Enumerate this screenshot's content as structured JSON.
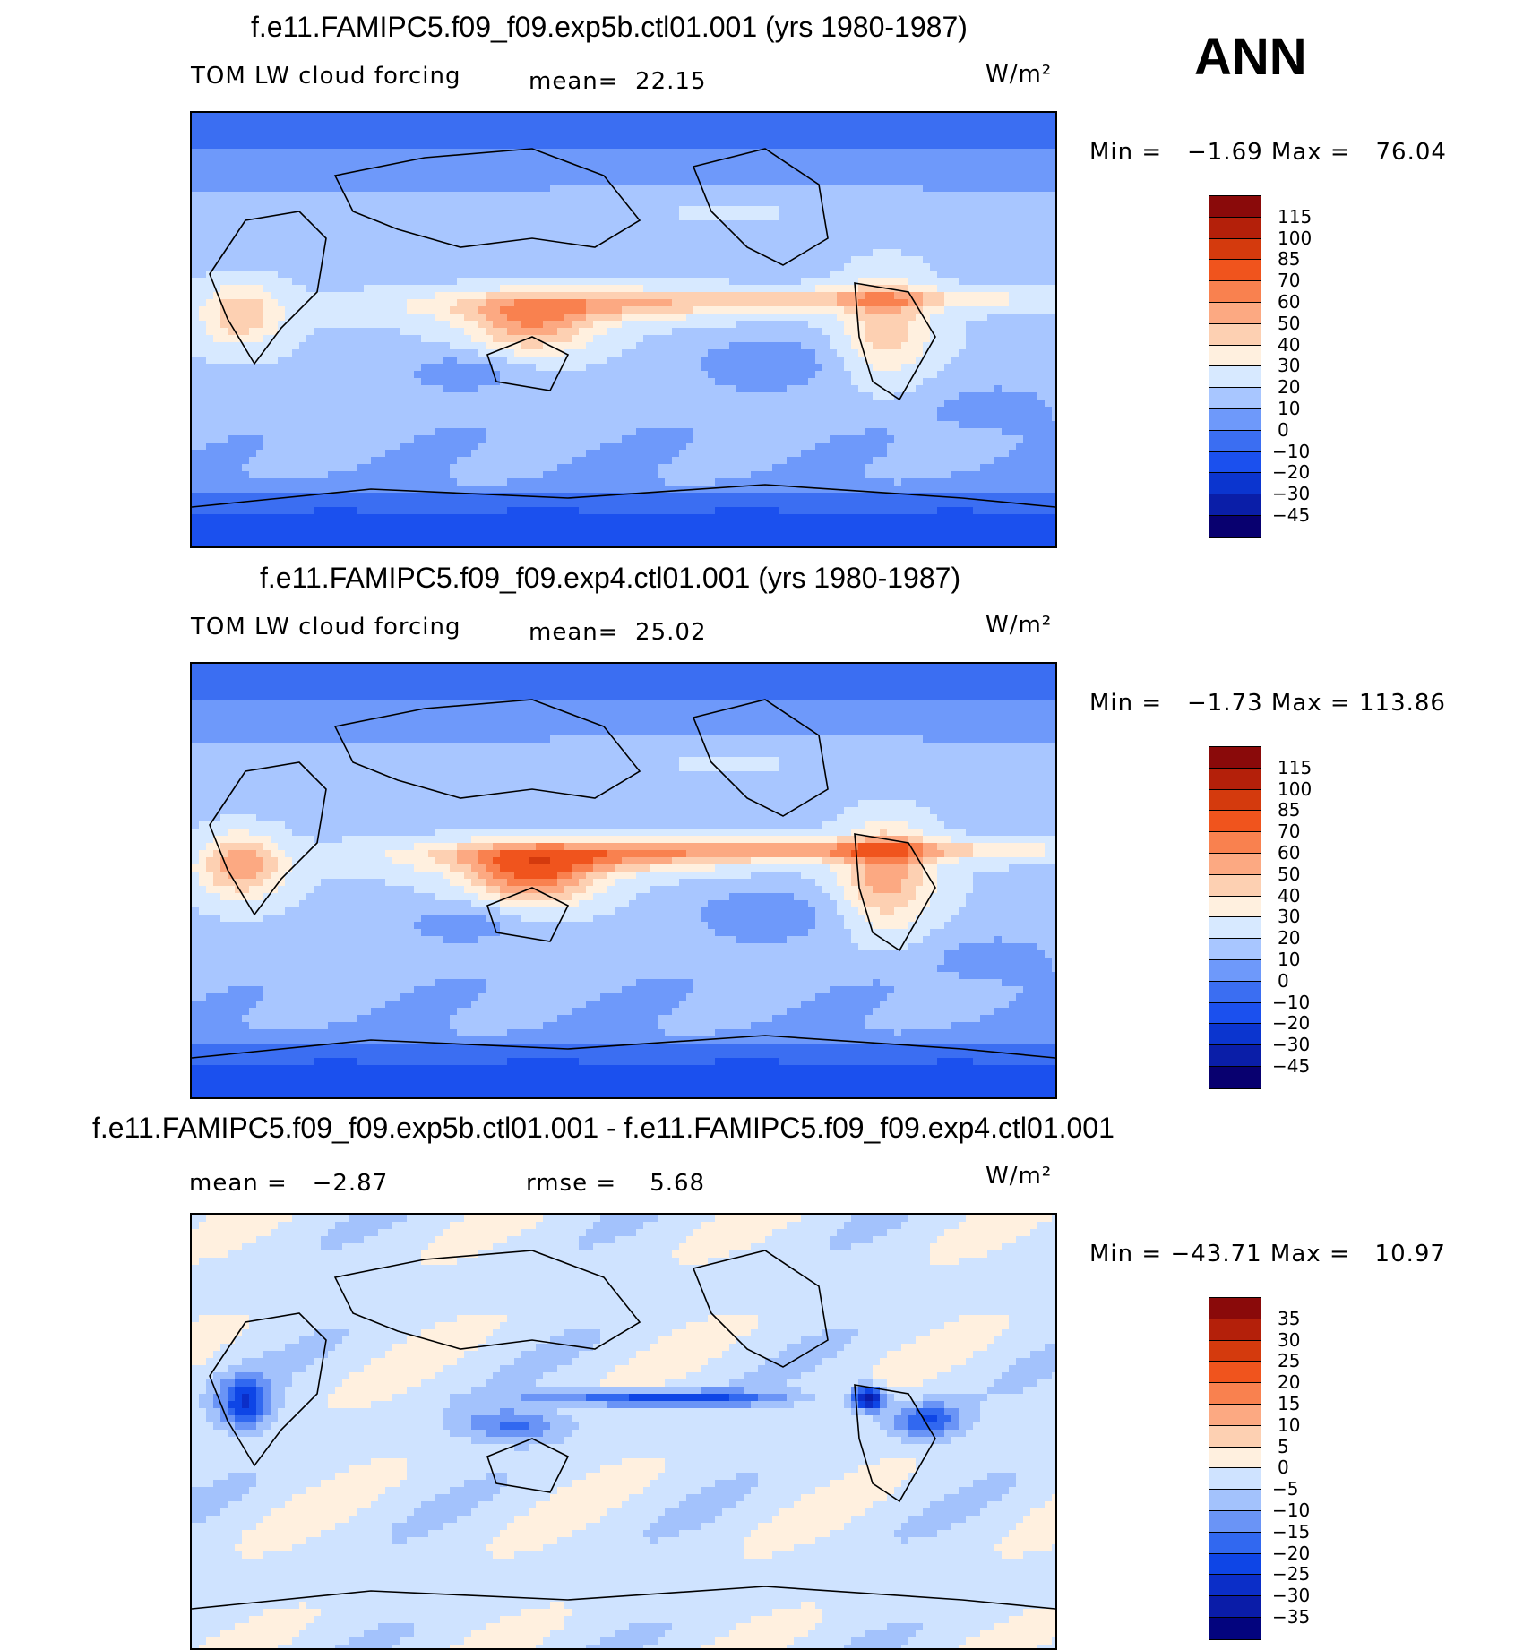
{
  "season": "ANN",
  "units": "W/m²",
  "palettes": {
    "abs": [
      "#08006f",
      "#0a1ea8",
      "#0b35cf",
      "#1b50ee",
      "#3b6ef2",
      "#6e99fa",
      "#a8c6ff",
      "#d7e9ff",
      "#fff0df",
      "#fdd0b2",
      "#fca982",
      "#f9814f",
      "#f0541d",
      "#d43a0d",
      "#b4200a",
      "#8a0a0a"
    ],
    "diff": [
      "#03047e",
      "#0a1ca8",
      "#0b2ec8",
      "#0e45e6",
      "#3168f0",
      "#6a94f6",
      "#a3c2fc",
      "#cfe3ff",
      "#fff0df",
      "#fdd0b2",
      "#fca982",
      "#f9814f",
      "#f0541d",
      "#d43a0d",
      "#b4200a",
      "#8a0a0a"
    ]
  },
  "panels": [
    {
      "title": "f.e11.FAMIPC5.f09_f09.exp5b.ctl01.001 (yrs 1980-1987)",
      "left_label": "TOM LW cloud forcing",
      "mid_label": "mean=  22.15",
      "units": "W/m²",
      "minmax": "Min =   −1.69 Max =   76.04",
      "palette": "abs",
      "scenario": "a"
    },
    {
      "title": "f.e11.FAMIPC5.f09_f09.exp4.ctl01.001 (yrs 1980-1987)",
      "left_label": "TOM LW cloud forcing",
      "mid_label": "mean=  25.02",
      "units": "W/m²",
      "minmax": "Min =   −1.73 Max = 113.86",
      "palette": "abs",
      "scenario": "b"
    },
    {
      "title": "f.e11.FAMIPC5.f09_f09.exp5b.ctl01.001 - f.e11.FAMIPC5.f09_f09.exp4.ctl01.001",
      "left_label": "mean =   −2.87",
      "mid_label": "rmse =    5.68",
      "units": "W/m²",
      "minmax": "Min = −43.71 Max =   10.97",
      "palette": "diff",
      "scenario": "d"
    }
  ],
  "chart_data": [
    {
      "type": "heatmap",
      "title": "f.e11.FAMIPC5.f09_f09.exp5b.ctl01.001 (yrs 1980-1987)",
      "variable": "TOM LW cloud forcing",
      "units": "W/m²",
      "mean": 22.15,
      "min": -1.69,
      "max": 76.04,
      "colorbar_levels": [
        115,
        100,
        85,
        70,
        60,
        50,
        40,
        30,
        20,
        10,
        0,
        -10,
        -20,
        -30,
        -45
      ]
    },
    {
      "type": "heatmap",
      "title": "f.e11.FAMIPC5.f09_f09.exp4.ctl01.001 (yrs 1980-1987)",
      "variable": "TOM LW cloud forcing",
      "units": "W/m²",
      "mean": 25.02,
      "min": -1.73,
      "max": 113.86,
      "colorbar_levels": [
        115,
        100,
        85,
        70,
        60,
        50,
        40,
        30,
        20,
        10,
        0,
        -10,
        -20,
        -30,
        -45
      ]
    },
    {
      "type": "heatmap",
      "title": "f.e11.FAMIPC5.f09_f09.exp5b.ctl01.001 - f.e11.FAMIPC5.f09_f09.exp4.ctl01.001",
      "units": "W/m²",
      "mean": -2.87,
      "rmse": 5.68,
      "min": -43.71,
      "max": 10.97,
      "colorbar_levels": [
        35,
        30,
        25,
        20,
        15,
        10,
        5,
        0,
        -5,
        -10,
        -15,
        -20,
        -25,
        -30,
        -35
      ]
    }
  ],
  "colorbar_ticks": {
    "abs": [
      "115",
      "100",
      "85",
      "70",
      "60",
      "50",
      "40",
      "30",
      "20",
      "10",
      "0",
      "−10",
      "−20",
      "−30",
      "−45"
    ],
    "diff": [
      "35",
      "30",
      "25",
      "20",
      "15",
      "10",
      "5",
      "0",
      "−5",
      "−10",
      "−15",
      "−20",
      "−25",
      "−30",
      "−35"
    ]
  }
}
